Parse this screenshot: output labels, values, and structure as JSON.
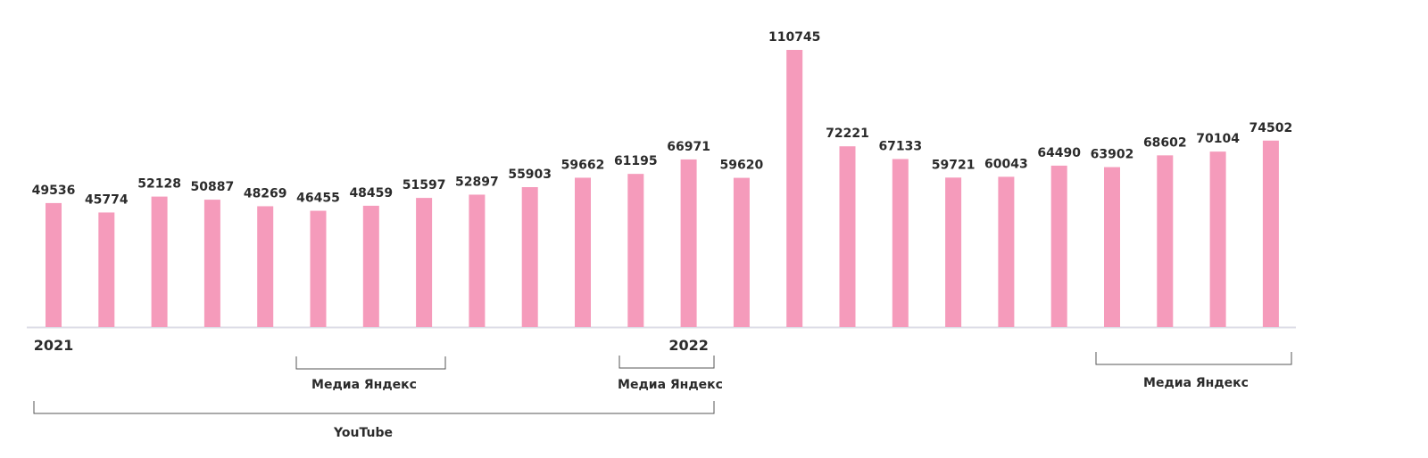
{
  "chart_data": {
    "type": "bar",
    "categories": [
      "2021",
      null,
      null,
      null,
      null,
      null,
      null,
      null,
      null,
      null,
      null,
      null,
      "2022",
      null,
      null,
      null,
      null,
      null,
      null,
      null,
      null,
      null,
      null,
      null
    ],
    "values": [
      49536,
      45774,
      52128,
      50887,
      48269,
      46455,
      48459,
      51597,
      52897,
      55903,
      59662,
      61195,
      66971,
      59620,
      110745,
      72221,
      67133,
      59721,
      60043,
      64490,
      63902,
      68602,
      70104,
      74502
    ],
    "color": "#f59bbb",
    "annotations": [
      "Медиа Яндекс",
      "Медиа Яндекс",
      "Медиа Яндекс",
      "YouTube"
    ]
  }
}
